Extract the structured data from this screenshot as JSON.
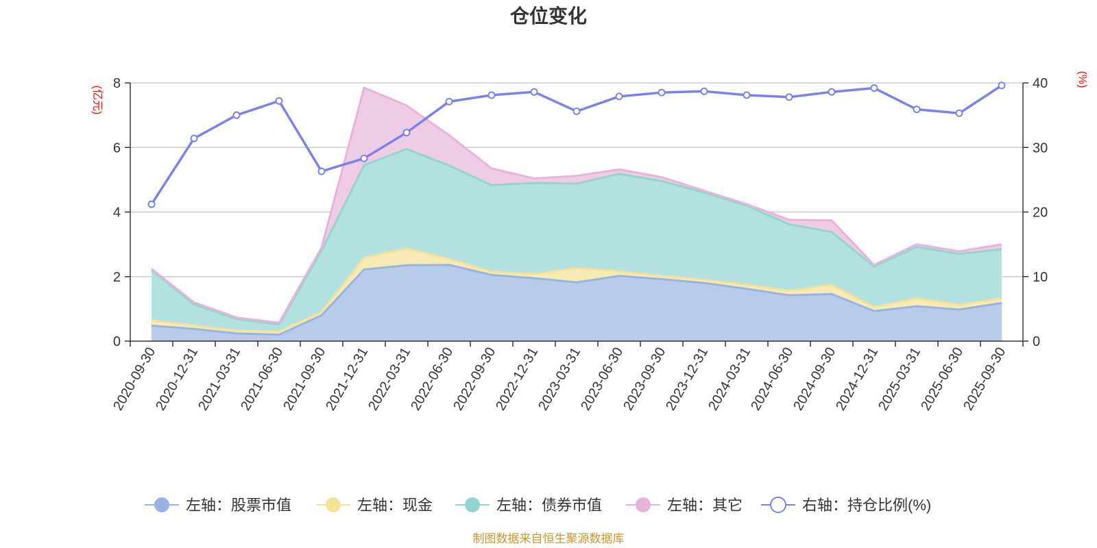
{
  "chart_data": {
    "type": "area",
    "title": "仓位变化",
    "source_note": "制图数据来自恒生聚源数据库",
    "left_unit": "(亿元)",
    "right_unit": "(%)",
    "left_ylim": [
      0,
      8
    ],
    "left_ticks": [
      "0",
      "2",
      "4",
      "6",
      "8"
    ],
    "right_ylim": [
      0,
      40
    ],
    "right_ticks": [
      "0",
      "10",
      "20",
      "30",
      "40"
    ],
    "categories": [
      "2020-09-30",
      "2020-12-31",
      "2021-03-31",
      "2021-06-30",
      "2021-09-30",
      "2021-12-31",
      "2022-03-31",
      "2022-06-30",
      "2022-09-30",
      "2022-12-31",
      "2023-03-31",
      "2023-06-30",
      "2023-09-30",
      "2023-12-31",
      "2024-03-31",
      "2024-06-30",
      "2024-09-30",
      "2024-12-31",
      "2025-03-31",
      "2025-06-30",
      "2025-09-30"
    ],
    "stacked_series": [
      {
        "name": "左轴：股票市值",
        "color": "#98b3e2",
        "fill": "#b9cbea",
        "values": [
          0.48,
          0.38,
          0.24,
          0.2,
          0.8,
          2.22,
          2.35,
          2.36,
          2.05,
          1.95,
          1.82,
          2.02,
          1.92,
          1.8,
          1.62,
          1.42,
          1.46,
          0.93,
          1.08,
          0.98,
          1.18
        ]
      },
      {
        "name": "左轴：现金",
        "color": "#f5e29a",
        "fill": "#f8eab7",
        "values": [
          0.16,
          0.1,
          0.08,
          0.1,
          0.1,
          0.36,
          0.52,
          0.18,
          0.1,
          0.12,
          0.44,
          0.14,
          0.1,
          0.1,
          0.12,
          0.14,
          0.28,
          0.12,
          0.24,
          0.14,
          0.14
        ]
      },
      {
        "name": "左轴：债券市值",
        "color": "#93d4d1",
        "fill": "#b3e1e0",
        "values": [
          1.56,
          0.66,
          0.36,
          0.22,
          1.9,
          2.87,
          3.08,
          2.9,
          2.68,
          2.83,
          2.62,
          3.02,
          2.94,
          2.7,
          2.46,
          2.06,
          1.64,
          1.26,
          1.6,
          1.58,
          1.53
        ]
      },
      {
        "name": "左轴：其它",
        "color": "#e8b3d9",
        "fill": "#efcce5",
        "values": [
          0.04,
          0.06,
          0.05,
          0.05,
          0.1,
          2.4,
          1.35,
          0.94,
          0.52,
          0.14,
          0.24,
          0.14,
          0.12,
          0.06,
          0.04,
          0.14,
          0.36,
          0.05,
          0.08,
          0.08,
          0.15
        ]
      }
    ],
    "line_series": {
      "name": "右轴：持仓比例(%)",
      "color": "#7b80ea",
      "values": [
        21.2,
        31.4,
        35.0,
        37.2,
        26.3,
        28.3,
        32.3,
        37.1,
        38.1,
        38.6,
        35.6,
        37.9,
        38.5,
        38.7,
        38.1,
        37.8,
        38.6,
        39.2,
        35.9,
        35.3,
        39.6
      ]
    }
  }
}
